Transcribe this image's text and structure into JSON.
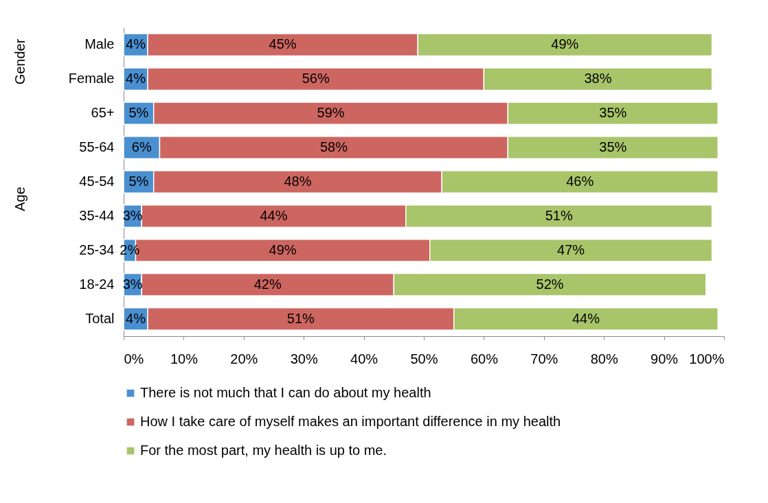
{
  "chart_data": {
    "type": "bar",
    "orientation": "horizontal",
    "stacked": true,
    "legend": "bottom",
    "grid": false,
    "categories": [
      "Male",
      "Female",
      "65+",
      "55-64",
      "45-54",
      "35-44",
      "25-34",
      "18-24",
      "Total"
    ],
    "annotations": [
      "Gender",
      "Age"
    ],
    "xlim": [
      0,
      100
    ],
    "xticks": [
      {
        "value": 0,
        "label": "0%"
      },
      {
        "value": 10,
        "label": "10%"
      },
      {
        "value": 20,
        "label": "20%"
      },
      {
        "value": 30,
        "label": "30%"
      },
      {
        "value": 40,
        "label": "40%"
      },
      {
        "value": 50,
        "label": "50%"
      },
      {
        "value": 60,
        "label": "60%"
      },
      {
        "value": 70,
        "label": "70%"
      },
      {
        "value": 80,
        "label": "80%"
      },
      {
        "value": 90,
        "label": "90%"
      },
      {
        "value": 100,
        "label": "100%"
      }
    ],
    "series": [
      {
        "name": "There is not much that I can do about my health",
        "color": "#4a8fd0",
        "values": [
          4,
          4,
          5,
          6,
          5,
          3,
          2,
          3,
          4
        ],
        "value_labels": [
          "4%",
          "4%",
          "5%",
          "6%",
          "5%",
          "3%",
          "2%",
          "3%",
          "4%"
        ]
      },
      {
        "name": "How I take care of myself makes an important difference in my health",
        "color": "#cd6660",
        "values": [
          45,
          56,
          59,
          58,
          48,
          44,
          49,
          42,
          51
        ],
        "value_labels": [
          "45%",
          "56%",
          "59%",
          "58%",
          "48%",
          "44%",
          "49%",
          "42%",
          "51%"
        ]
      },
      {
        "name": "For the most part, my health is up to me.",
        "color": "#a8c56a",
        "values": [
          49,
          38,
          35,
          35,
          46,
          51,
          47,
          52,
          44
        ],
        "value_labels": [
          "49%",
          "38%",
          "35%",
          "35%",
          "46%",
          "51%",
          "47%",
          "52%",
          "44%"
        ]
      }
    ]
  }
}
